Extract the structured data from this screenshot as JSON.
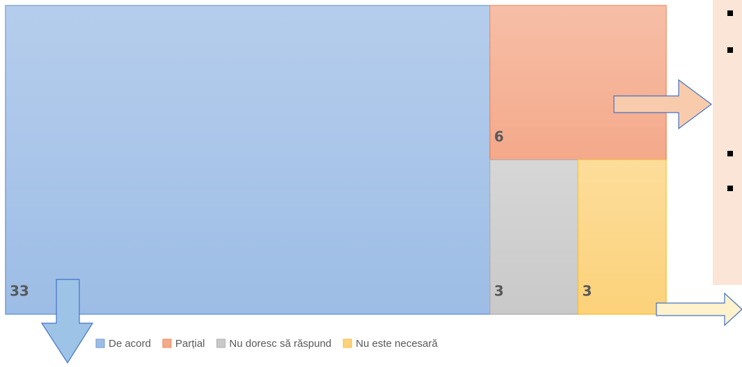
{
  "chart_data": {
    "type": "treemap",
    "categories": [
      "De acord",
      "Parțial",
      "Nu doresc să răspund",
      "Nu este necesară"
    ],
    "values": [
      33,
      6,
      3,
      3
    ],
    "colors": [
      "#9dbde6",
      "#f4a98a",
      "#c9c9c9",
      "#fcd27a"
    ],
    "borders": [
      "#6f9bd0",
      "#ed8a5e",
      "#b0b0b0",
      "#f5c242"
    ],
    "legend": "bottom"
  }
}
